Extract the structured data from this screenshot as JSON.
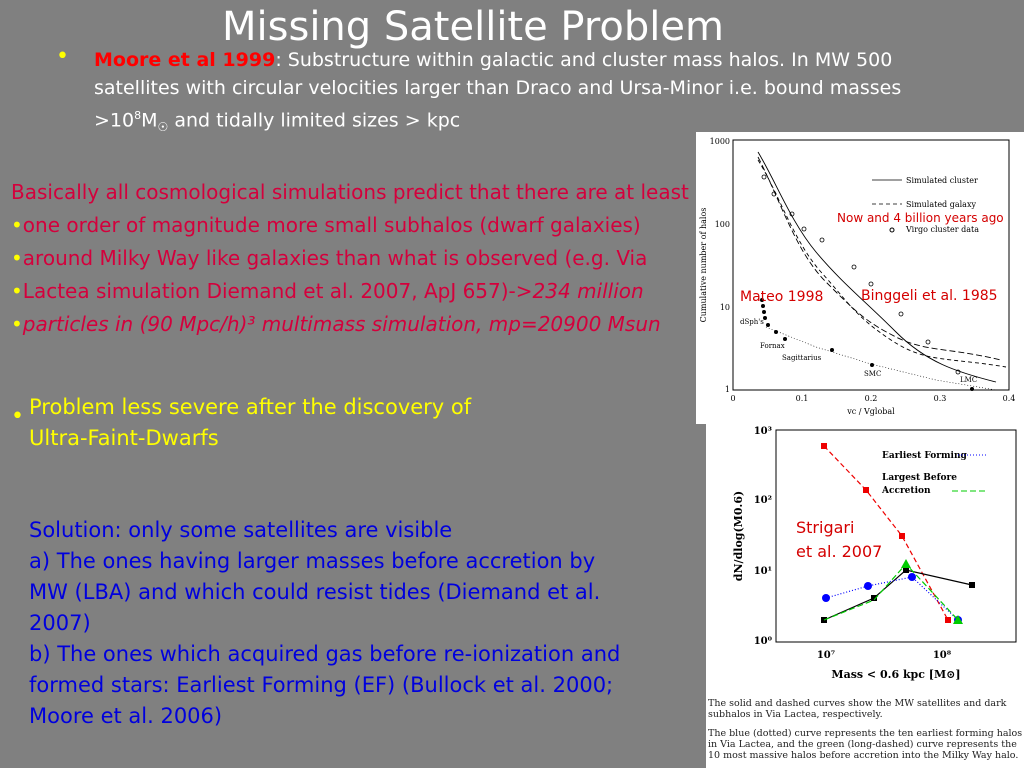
{
  "slide": {
    "title": "Missing Satellite Problem",
    "bullet1": {
      "author": "Moore et al 1999",
      "text_a": ": Substructure within galactic and cluster mass halos. In MW 500 satellites with circular velocities larger than Draco and Ursa-Minor i.e. bound masses >10",
      "sup": "8",
      "mass_unit": "M",
      "sun_sub": "☉",
      "text_b": " and tidally limited sizes  > kpc"
    },
    "red_lines": [
      "Basically all cosmological simulations predict that there are at least",
      "one order of magnitude more small subhalos (dwarf galaxies)",
      "around Milky Way like galaxies than what is observed (e.g. Via",
      "Lactea simulation Diemand et al. 2007, ApJ 657)->",
      "234 million",
      "particles in (90 Mpc/h)³ multimass simulation, mp=20900 Msun"
    ],
    "yellow_lines": [
      "Problem less severe after the discovery of",
      "Ultra-Faint-Dwarfs"
    ],
    "blue_lines": [
      "Solution: only some satellites are visible",
      "a)  The ones having larger masses before accretion by",
      "MW (LBA) and which could resist tides (Diemand et al.",
      "2007)",
      "b) The ones which acquired gas before re-ionization and",
      "formed stars: Earliest Forming  (EF) (Bullock et al. 2000;",
      "Moore et al. 2006)"
    ]
  },
  "figure1": {
    "ylabel": "Cumulative number of halos",
    "xlabel": "vc / Vglobal",
    "yticks": [
      "1000",
      "100",
      "10",
      "1"
    ],
    "xticks": [
      "0",
      "0.1",
      "0.2",
      "0.3",
      "0.4"
    ],
    "legend": [
      "Simulated cluster",
      "Simulated galaxy",
      "Virgo cluster data"
    ],
    "point_labels": [
      "dSph's",
      "Fornax",
      "Sagittarius",
      "SMC",
      "LMC"
    ],
    "overlay_now": "Now and 4 billion years ago",
    "overlay_mateo": "Mateo 1998",
    "overlay_binggeli": "Binggeli et al. 1985"
  },
  "figure2": {
    "ylabel": "dN/dlog(M0.6)",
    "xlabel": "Mass < 0.6 kpc [M⊙]",
    "yticks": [
      "10³",
      "10²",
      "10¹",
      "10⁰"
    ],
    "xticks": [
      "10⁷",
      "10⁸"
    ],
    "legend": [
      "Earliest Forming",
      "Largest Before",
      "Accretion"
    ],
    "overlay_strigari": [
      "Strigari",
      "et al. 2007"
    ],
    "caption1": "The solid and dashed curves show the MW satellites and dark subhalos in Via Lactea, respectively.",
    "caption2": "The blue (dotted) curve represents the ten earliest forming halos in Via Lactea, and the green (long-dashed) curve represents the 10 most massive halos before accretion into the Milky Way halo."
  },
  "colors": {
    "background": "#808080",
    "red_text": "#d4003c",
    "yellow": "#ffff00",
    "blue": "#0000dd"
  }
}
